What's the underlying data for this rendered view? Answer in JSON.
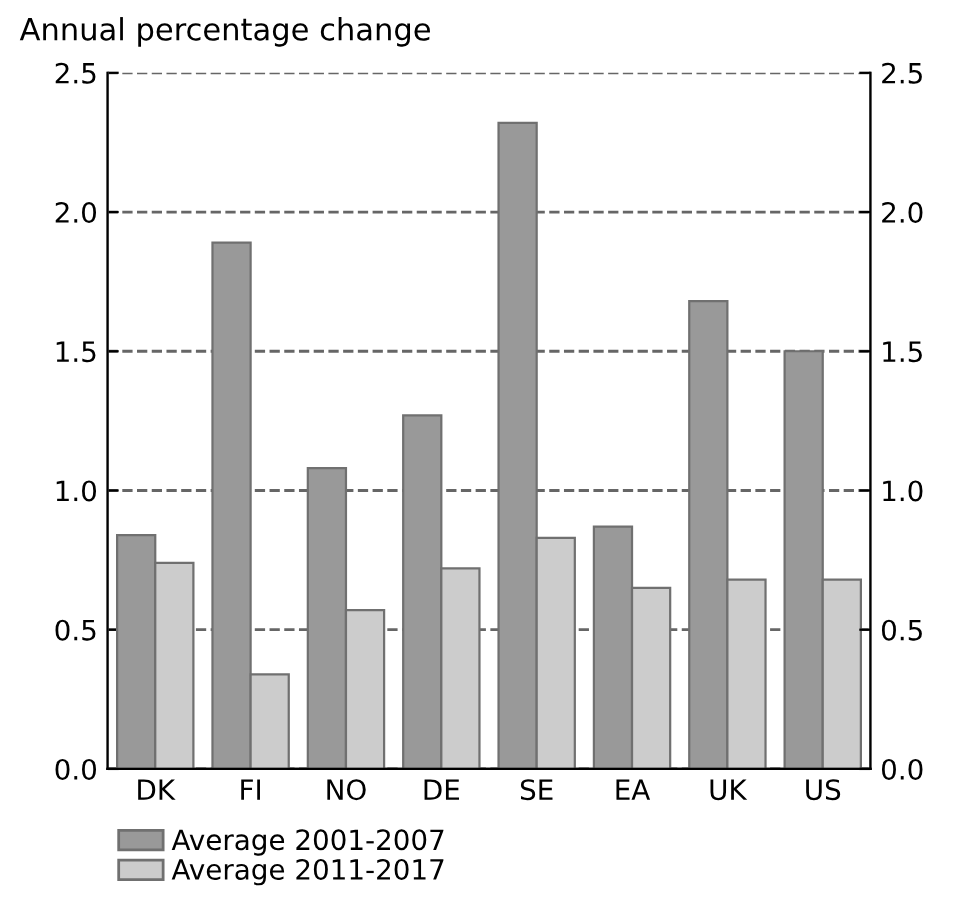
{
  "chart_data": {
    "type": "bar",
    "ylabel": "Annual percentage change",
    "categories": [
      "DK",
      "FI",
      "NO",
      "DE",
      "SE",
      "EA",
      "UK",
      "US"
    ],
    "series": [
      {
        "name": "Average 2001-2007",
        "color": "#999999",
        "values": [
          0.84,
          1.89,
          1.08,
          1.27,
          2.32,
          0.87,
          1.68,
          1.5
        ]
      },
      {
        "name": "Average 2011-2017",
        "color": "#cccccc",
        "values": [
          0.74,
          0.34,
          0.57,
          0.72,
          0.83,
          0.65,
          0.68,
          0.68
        ]
      }
    ],
    "ylim": [
      0,
      2.5
    ],
    "yticks": [
      {
        "value": 0,
        "label": "0.0"
      },
      {
        "value": 0.5,
        "label": "0.5"
      },
      {
        "value": 1,
        "label": "1.0"
      },
      {
        "value": 1.5,
        "label": "1.5"
      },
      {
        "value": 2,
        "label": "2.0"
      },
      {
        "value": 2.5,
        "label": "2.5"
      }
    ],
    "y2lim": [
      0,
      2.5
    ],
    "y2ticks": [
      {
        "value": 0,
        "label": "0.0"
      },
      {
        "value": 0.5,
        "label": "0.5"
      },
      {
        "value": 1,
        "label": "1.0"
      },
      {
        "value": 1.5,
        "label": "1.5"
      },
      {
        "value": 2,
        "label": "2.0"
      },
      {
        "value": 2.5,
        "label": "2.5"
      }
    ],
    "grid": "y",
    "legend": "bottom"
  }
}
